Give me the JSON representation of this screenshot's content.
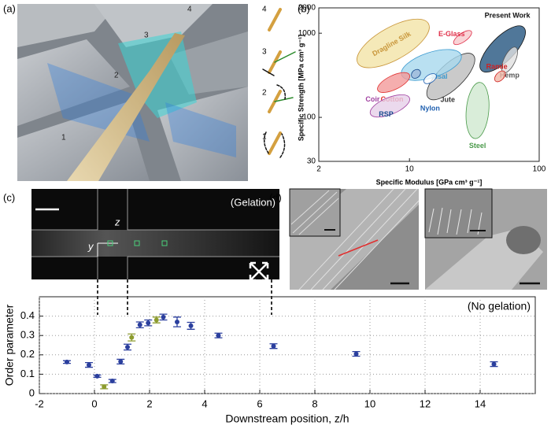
{
  "panel_labels": [
    "(a)",
    "(b)",
    "(c)",
    "(d)"
  ],
  "render_labels": [
    "1",
    "2",
    "3",
    "4"
  ],
  "stage_labels": [
    "4",
    "3",
    "2",
    "1"
  ],
  "channel_image": {
    "annotation": "(Gelation)",
    "z_label": "z",
    "y_label": "y"
  },
  "chart_data": [
    {
      "type": "ellipse",
      "x_label": "Specific Modulus [GPa cm³ g⁻¹]",
      "y_label": "Specific Strength [MPa cm³ g⁻¹]",
      "xlog": true,
      "ylog": true,
      "xlim": [
        2,
        100
      ],
      "ylim": [
        30,
        2000
      ],
      "xticks": [
        2,
        10,
        100
      ],
      "yticks": [
        30,
        100,
        1000,
        2000
      ],
      "series": [
        {
          "name": "Dragline Silk",
          "color": "#f3e3a6",
          "label_color": "#c9973c",
          "x": [
            4,
            14
          ],
          "y": [
            440,
            1300
          ]
        },
        {
          "name": "Jute",
          "color": "#bdbdbd",
          "label_color": "#333333",
          "x": [
            14,
            31
          ],
          "y": [
            170,
            550
          ]
        },
        {
          "name": "Present Work",
          "color": "#24557f",
          "label_color": "#111111",
          "x": [
            36,
            76
          ],
          "y": [
            360,
            1170
          ]
        },
        {
          "name": "Sisal",
          "color": "#a8d8ee",
          "label_color": "#3a9ad0",
          "x": [
            8.7,
            25
          ],
          "y": [
            320,
            550
          ]
        },
        {
          "name": "Cotton",
          "color": "#f29a9a",
          "label_color": "#e03030",
          "x": [
            5.7,
            10
          ],
          "y": [
            210,
            320
          ]
        },
        {
          "name": "Coir",
          "color": "#e6cfe8",
          "label_color": "#a040a0",
          "x": [
            5,
            10
          ],
          "y": [
            110,
            170
          ]
        },
        {
          "name": "E-Glass",
          "color": "#f8c8cc",
          "label_color": "#e0304a",
          "x": [
            22,
            30
          ],
          "y": [
            750,
            1050
          ]
        },
        {
          "name": "Hemp",
          "color": "#e0e0e0",
          "label_color": "#555555",
          "x": [
            53,
            66
          ],
          "y": [
            340,
            680
          ]
        },
        {
          "name": "Ramie",
          "color": "#f0b8a8",
          "label_color": "#d02020",
          "x": [
            46,
            54
          ],
          "y": [
            270,
            350
          ]
        },
        {
          "name": "Nylon",
          "color": "#ffffff",
          "label_color": "#2060b0",
          "x": [
            13,
            16
          ],
          "y": [
            260,
            320
          ]
        },
        {
          "name": "RSP",
          "color": "#9db8da",
          "label_color": "#1a4d8f",
          "x": [
            10.5,
            12
          ],
          "y": [
            300,
            360
          ]
        },
        {
          "name": "Steel",
          "color": "#cfe8cf",
          "label_color": "#4a9a4a",
          "x": [
            32,
            35
          ],
          "y": [
            56,
            260
          ]
        }
      ]
    },
    {
      "type": "scatter",
      "x_label": "Downstream position, z/h",
      "y_label": "Order parameter",
      "annotation": "(No gelation)",
      "xlim": [
        -2,
        16
      ],
      "ylim": [
        0,
        0.5
      ],
      "xticks": [
        -2,
        0,
        2,
        4,
        6,
        8,
        10,
        12,
        14
      ],
      "yticks": [
        0,
        0.1,
        0.2,
        0.3,
        0.4
      ],
      "grid": true,
      "series": [
        {
          "color": "#2b3f9e",
          "x": [
            -1,
            -0.2,
            0.1,
            0.65,
            0.95,
            1.2,
            1.65,
            1.95,
            2.5,
            3,
            3.5,
            4.5,
            6.5,
            9.5,
            14.5
          ],
          "values": [
            0.163,
            0.148,
            0.09,
            0.065,
            0.165,
            0.24,
            0.355,
            0.365,
            0.395,
            0.37,
            0.35,
            0.3,
            0.245,
            0.205,
            0.152
          ],
          "errors": [
            0.007,
            0.012,
            0.006,
            0.008,
            0.012,
            0.015,
            0.015,
            0.015,
            0.015,
            0.025,
            0.018,
            0.012,
            0.012,
            0.012,
            0.012
          ]
        },
        {
          "color": "#8c9b2e",
          "x": [
            0.35,
            1.35,
            2.25
          ],
          "values": [
            0.035,
            0.29,
            0.38
          ],
          "errors": [
            0.01,
            0.018,
            0.015
          ]
        }
      ]
    }
  ]
}
